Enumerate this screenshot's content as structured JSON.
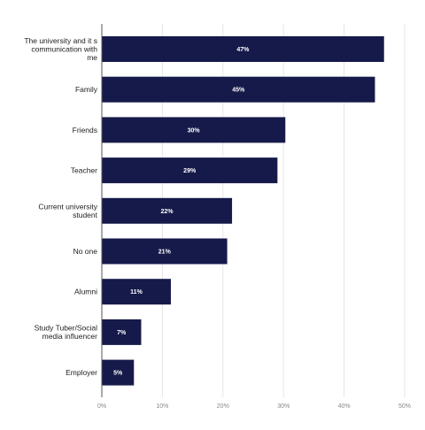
{
  "chart_data": {
    "type": "bar",
    "orientation": "horizontal",
    "categories": [
      [
        "The university and it s",
        "communication with",
        "me"
      ],
      [
        "Family"
      ],
      [
        "Friends"
      ],
      [
        "Teacher"
      ],
      [
        "Current university",
        "student"
      ],
      [
        "No one"
      ],
      [
        "Alumni"
      ],
      [
        "Study Tuber/Social",
        "media influencer"
      ],
      [
        "Employer"
      ]
    ],
    "values": [
      47,
      45,
      30,
      29,
      22,
      21,
      11,
      7,
      5
    ],
    "value_labels": [
      "47%",
      "45%",
      "30%",
      "29%",
      "22%",
      "21%",
      "11%",
      "7%",
      "5%"
    ],
    "bar_values": [
      46.6,
      45.1,
      30.3,
      29.0,
      21.5,
      20.7,
      11.4,
      6.5,
      5.3
    ],
    "xlim": [
      0,
      50
    ],
    "xticks": [
      0,
      10,
      20,
      30,
      40,
      50
    ],
    "xtick_labels": [
      "0%",
      "10%",
      "20%",
      "30%",
      "40%",
      "50%"
    ],
    "grid": true,
    "legend": "none",
    "colors": {
      "bar": "#161a4a",
      "grid": "#e6e6e6",
      "axis": "#555555"
    }
  }
}
